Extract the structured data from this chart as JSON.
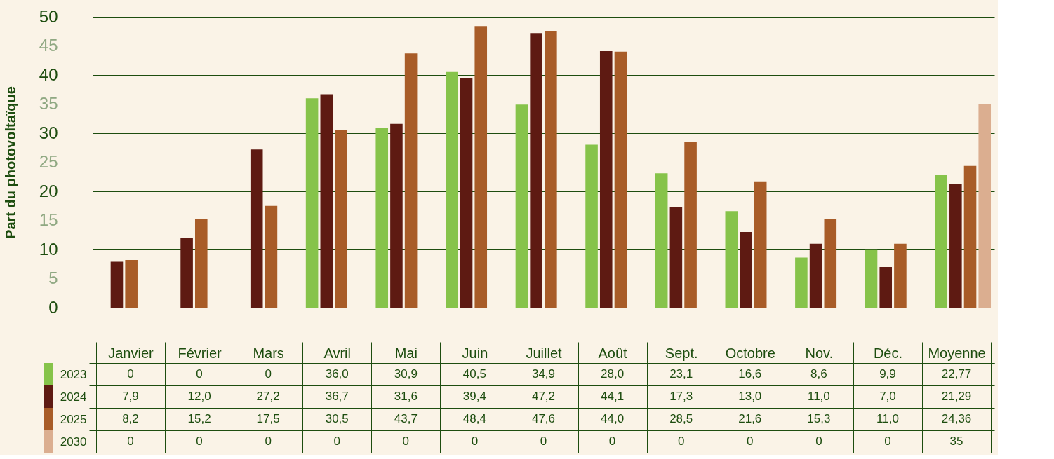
{
  "chart_data": {
    "type": "bar",
    "ylabel": "Part du photovoltaïque",
    "categories": [
      "Janvier",
      "Février",
      "Mars",
      "Avril",
      "Mai",
      "Juin",
      "Juillet",
      "Août",
      "Sept.",
      "Octobre",
      "Nov.",
      "Déc.",
      "Moyenne"
    ],
    "ylim": [
      0,
      50
    ],
    "yticks": [
      0,
      5,
      10,
      15,
      20,
      25,
      30,
      35,
      40,
      45,
      50
    ],
    "grid": "y",
    "legend": "bottom left",
    "series": [
      {
        "name": "2023",
        "color": "#86c34a",
        "values": [
          0,
          0,
          0,
          36.0,
          30.9,
          40.5,
          34.9,
          28.0,
          23.1,
          16.6,
          8.6,
          9.9,
          22.77
        ],
        "value_labels": [
          "0",
          "0",
          "0",
          "36,0",
          "30,9",
          "40,5",
          "34,9",
          "28,0",
          "23,1",
          "16,6",
          "8,6",
          "9,9",
          "22,77"
        ]
      },
      {
        "name": "2024",
        "color": "#5e1a12",
        "values": [
          7.9,
          12.0,
          27.2,
          36.7,
          31.6,
          39.4,
          47.2,
          44.1,
          17.3,
          13.0,
          11.0,
          7.0,
          21.29
        ],
        "value_labels": [
          "7,9",
          "12,0",
          "27,2",
          "36,7",
          "31,6",
          "39,4",
          "47,2",
          "44,1",
          "17,3",
          "13,0",
          "11,0",
          "7,0",
          "21,29"
        ]
      },
      {
        "name": "2025",
        "color": "#a85c28",
        "values": [
          8.2,
          15.2,
          17.5,
          30.5,
          43.7,
          48.4,
          47.6,
          44.0,
          28.5,
          21.6,
          15.3,
          11.0,
          24.36
        ],
        "value_labels": [
          "8,2",
          "15,2",
          "17,5",
          "30,5",
          "43,7",
          "48,4",
          "47,6",
          "44,0",
          "28,5",
          "21,6",
          "15,3",
          "11,0",
          "24,36"
        ]
      },
      {
        "name": "2030",
        "color": "#dbae90",
        "values": [
          0,
          0,
          0,
          0,
          0,
          0,
          0,
          0,
          0,
          0,
          0,
          0,
          35
        ],
        "value_labels": [
          "0",
          "0",
          "0",
          "0",
          "0",
          "0",
          "0",
          "0",
          "0",
          "0",
          "0",
          "0",
          "35"
        ]
      }
    ]
  }
}
